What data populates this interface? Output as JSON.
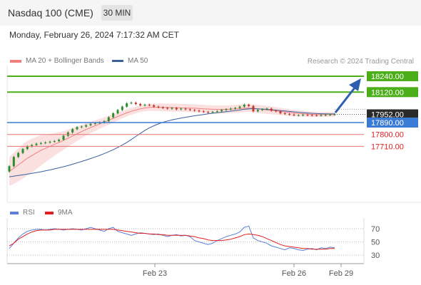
{
  "header": {
    "title": "Nasdaq 100 (CME)",
    "timeframe": "30 MIN"
  },
  "timestamp": "Monday, February 26, 2024 7:17:32 AM CET",
  "legend": {
    "bb_label": "MA 20 + Bollinger Bands",
    "bb_color": "#f08080",
    "ma50_label": "MA 50",
    "ma50_color": "#3a5fa0"
  },
  "credit": "Research © 2024 Trading Central",
  "rsi_legend": {
    "rsi_label": "RSI",
    "rsi_color": "#5a7fd6",
    "ma_label": "9MA",
    "ma_color": "#e02020"
  },
  "colors": {
    "support_target": "#4caf1a",
    "pivot": "#3a7bd5",
    "resistance": "#e57373",
    "current": "#2a2a2a",
    "candle_up": "#2e8b2e",
    "candle_down": "#c0392b"
  },
  "chart_data": [
    {
      "type": "candlestick",
      "title": "Nasdaq 100 (CME)",
      "y_range": [
        17450,
        18330
      ],
      "levels": [
        {
          "value": 18240.0,
          "label": "18240.00",
          "kind": "target"
        },
        {
          "value": 18120.0,
          "label": "18120.00",
          "kind": "target"
        },
        {
          "value": 17952.0,
          "label": "17952.00",
          "kind": "current"
        },
        {
          "value": 17890.0,
          "label": "17890.00",
          "kind": "pivot"
        },
        {
          "value": 17800.0,
          "label": "17800.00",
          "kind": "support"
        },
        {
          "value": 17710.0,
          "label": "17710.00",
          "kind": "support"
        }
      ],
      "x_ticks": [
        "Feb 23",
        "Feb 26",
        "Feb 29"
      ],
      "closes": [
        17560,
        17630,
        17660,
        17690,
        17710,
        17720,
        17730,
        17735,
        17740,
        17745,
        17750,
        17760,
        17790,
        17815,
        17840,
        17855,
        17860,
        17870,
        17880,
        17885,
        17890,
        17900,
        17930,
        17960,
        17985,
        18010,
        18035,
        18040,
        18030,
        18020,
        18025,
        18020,
        18010,
        18005,
        18000,
        17995,
        18000,
        17990,
        17995,
        17990,
        17985,
        17980,
        17975,
        17970,
        17965,
        17970,
        17975,
        17985,
        17990,
        17995,
        18000,
        18010,
        18025,
        18015,
        17975,
        17985,
        17990,
        17995,
        17980,
        17975,
        17960,
        17955,
        17950,
        17945,
        17945,
        17948,
        17946,
        17945,
        17944,
        17946,
        17948,
        17950,
        17952
      ],
      "ma50": [
        17480,
        17485,
        17490,
        17495,
        17500,
        17506,
        17512,
        17518,
        17525,
        17532,
        17540,
        17548,
        17556,
        17565,
        17575,
        17585,
        17596,
        17607,
        17618,
        17630,
        17642,
        17655,
        17670,
        17685,
        17702,
        17720,
        17740,
        17762,
        17785,
        17808,
        17830,
        17850,
        17866,
        17880,
        17892,
        17902,
        17910,
        17917,
        17924,
        17930,
        17936,
        17941,
        17946,
        17951,
        17956,
        17960,
        17964,
        17968,
        17972,
        17976,
        17980,
        17985,
        17990,
        17993,
        17995,
        17994,
        17992,
        17990,
        17987,
        17984,
        17981,
        17977,
        17974,
        17971,
        17968,
        17965,
        17962,
        17960,
        17958,
        17957,
        17956,
        17955,
        17955
      ],
      "ma20": [
        17520,
        17545,
        17570,
        17595,
        17620,
        17640,
        17660,
        17680,
        17695,
        17710,
        17725,
        17740,
        17755,
        17772,
        17788,
        17805,
        17822,
        17838,
        17852,
        17866,
        17880,
        17894,
        17908,
        17922,
        17936,
        17950,
        17963,
        17975,
        17985,
        17994,
        18000,
        18004,
        18006,
        18006,
        18005,
        18004,
        18003,
        18002,
        18001,
        18000,
        17999,
        17998,
        17996,
        17994,
        17992,
        17990,
        17989,
        17989,
        17990,
        17991,
        17993,
        17995,
        17998,
        17999,
        17997,
        17994,
        17990,
        17986,
        17982,
        17978,
        17974,
        17970,
        17966,
        17962,
        17959,
        17956,
        17954,
        17952,
        17951,
        17951,
        17951,
        17951,
        17951
      ],
      "bb_half_width": [
        110,
        118,
        125,
        130,
        130,
        128,
        122,
        115,
        105,
        95,
        85,
        78,
        70,
        65,
        60,
        55,
        50,
        46,
        42,
        40,
        38,
        36,
        34,
        32,
        30,
        28,
        27,
        26,
        25,
        25,
        25,
        26,
        27,
        28,
        29,
        30,
        30,
        30,
        30,
        30,
        30,
        30,
        30,
        30,
        30,
        30,
        30,
        30,
        30,
        30,
        30,
        30,
        30,
        30,
        30,
        30,
        30,
        30,
        30,
        28,
        27,
        26,
        25,
        24,
        23,
        22,
        21,
        20,
        19,
        18,
        18,
        18,
        18
      ]
    },
    {
      "type": "line",
      "title": "RSI",
      "y_ticks": [
        70,
        50,
        30
      ],
      "y_range": [
        20,
        85
      ],
      "series": [
        {
          "name": "RSI",
          "values": [
            40,
            48,
            56,
            62,
            66,
            68,
            69,
            69,
            68,
            69,
            70,
            69,
            68,
            69,
            70,
            69,
            68,
            70,
            72,
            70,
            68,
            66,
            70,
            72,
            66,
            64,
            62,
            60,
            62,
            64,
            63,
            62,
            61,
            62,
            60,
            58,
            60,
            61,
            59,
            60,
            58,
            52,
            50,
            48,
            46,
            48,
            52,
            55,
            58,
            60,
            62,
            65,
            72,
            74,
            56,
            52,
            50,
            48,
            44,
            42,
            40,
            38,
            41,
            40,
            38,
            37,
            39,
            40,
            38,
            41,
            40,
            42,
            41
          ]
        },
        {
          "name": "9MA",
          "values": [
            44,
            48,
            54,
            58,
            62,
            65,
            67,
            68,
            68,
            68,
            69,
            69,
            69,
            69,
            69,
            69,
            69,
            69,
            69,
            69,
            69,
            69,
            69,
            69,
            68,
            67,
            66,
            65,
            64,
            63,
            63,
            62,
            62,
            61,
            61,
            60,
            60,
            60,
            60,
            60,
            59,
            58,
            56,
            55,
            53,
            52,
            52,
            52,
            53,
            54,
            56,
            58,
            61,
            62,
            61,
            60,
            58,
            55,
            52,
            49,
            46,
            44,
            43,
            42,
            41,
            40,
            40,
            39,
            39,
            39,
            39,
            40,
            40
          ]
        }
      ]
    }
  ]
}
